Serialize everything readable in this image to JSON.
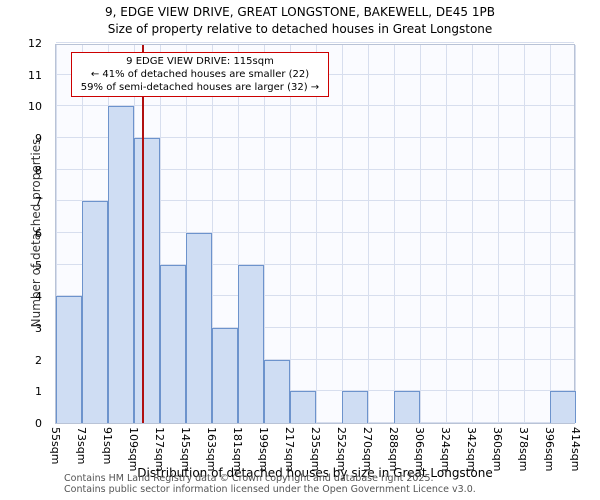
{
  "title": "9, EDGE VIEW DRIVE, GREAT LONGSTONE, BAKEWELL, DE45 1PB",
  "subtitle": "Size of property relative to detached houses in Great Longstone",
  "chart_data": {
    "type": "bar",
    "histogram": true,
    "bin_edge_labels": [
      "55sqm",
      "73sqm",
      "91sqm",
      "109sqm",
      "127sqm",
      "145sqm",
      "163sqm",
      "181sqm",
      "199sqm",
      "217sqm",
      "235sqm",
      "252sqm",
      "270sqm",
      "288sqm",
      "306sqm",
      "324sqm",
      "342sqm",
      "360sqm",
      "378sqm",
      "396sqm",
      "414sqm"
    ],
    "bin_edges_sqm": [
      55,
      73,
      91,
      109,
      127,
      145,
      163,
      181,
      199,
      217,
      235,
      252,
      270,
      288,
      306,
      324,
      342,
      360,
      378,
      396,
      414
    ],
    "values": [
      4,
      7,
      10,
      9,
      5,
      6,
      3,
      5,
      2,
      1,
      0,
      1,
      0,
      1,
      0,
      0,
      0,
      0,
      0,
      1
    ],
    "ylabel": "Number of detached properties",
    "xlabel": "Distribution of detached houses by size in Great Longstone",
    "ylim": [
      0,
      12
    ],
    "ytick_step": 1,
    "grid": true,
    "marker_value_sqm": 115,
    "annotation": {
      "line1": "9 EDGE VIEW DRIVE: 115sqm",
      "line2": "← 41% of detached houses are smaller (22)",
      "line3": "59% of semi-detached houses are larger (32) →"
    },
    "colors": {
      "bar_fill": "#cfddf3",
      "bar_border": "#6d93cc",
      "grid": "#d7deee",
      "marker_line": "#b01010",
      "annotation_border": "#cc0000"
    }
  },
  "footer": {
    "line1": "Contains HM Land Registry data © Crown copyright and database right 2025.",
    "line2": "Contains public sector information licensed under the Open Government Licence v3.0."
  }
}
